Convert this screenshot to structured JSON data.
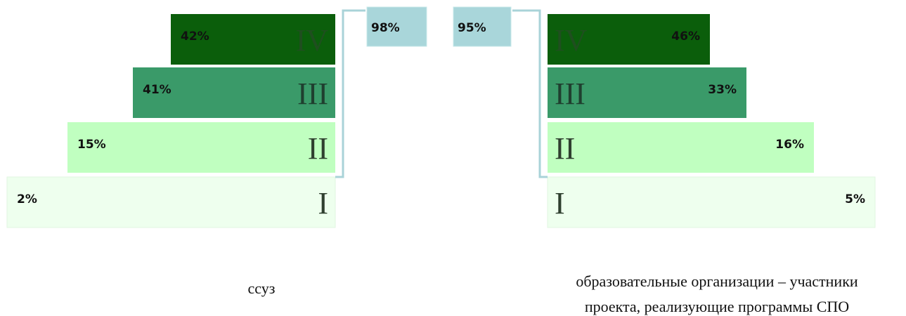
{
  "left": {
    "caption": [
      "ссуз"
    ],
    "total": "98%",
    "levels": [
      {
        "roman": "IV",
        "value": "42%"
      },
      {
        "roman": "III",
        "value": "41%"
      },
      {
        "roman": "II",
        "value": "15%"
      },
      {
        "roman": "I",
        "value": "2%"
      }
    ]
  },
  "right": {
    "caption": [
      "образовательные организации – участники",
      "проекта, реализующие программы СПО"
    ],
    "total": "95%",
    "levels": [
      {
        "roman": "IV",
        "value": "46%"
      },
      {
        "roman": "III",
        "value": "33%"
      },
      {
        "roman": "II",
        "value": "16%"
      },
      {
        "roman": "I",
        "value": "5%"
      }
    ]
  }
}
